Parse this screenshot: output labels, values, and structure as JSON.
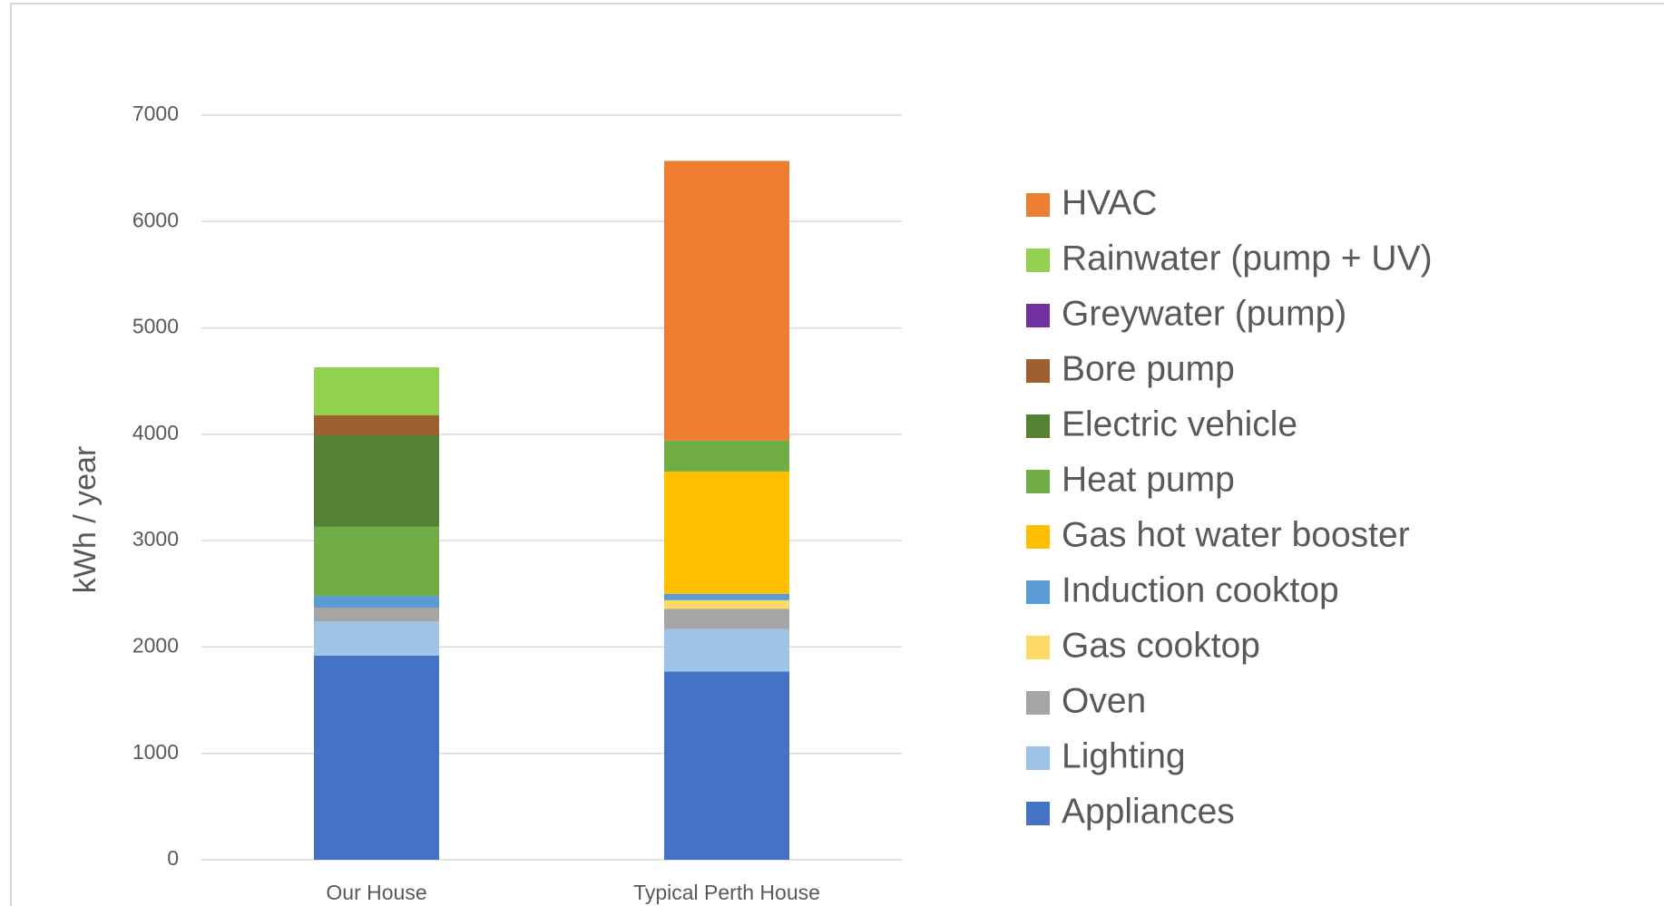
{
  "chart_data": {
    "type": "stacked_bar",
    "y_label": "kWh / year",
    "categories": [
      "Our House",
      "Typical Perth House"
    ],
    "ylim": [
      0,
      7000
    ],
    "yticks": [
      0,
      1000,
      2000,
      3000,
      4000,
      5000,
      6000,
      7000
    ],
    "grid": true,
    "series": [
      {
        "name": "Appliances",
        "color": "#4472c4",
        "values": [
          1920,
          1770
        ]
      },
      {
        "name": "Lighting",
        "color": "#9dc3e6",
        "values": [
          320,
          400
        ]
      },
      {
        "name": "Oven",
        "color": "#a5a5a5",
        "values": [
          130,
          190
        ]
      },
      {
        "name": "Gas cooktop",
        "color": "#ffd966",
        "values": [
          0,
          80
        ]
      },
      {
        "name": "Induction cooktop",
        "color": "#5b9bd5",
        "values": [
          110,
          60
        ]
      },
      {
        "name": "Gas hot water booster",
        "color": "#ffc000",
        "values": [
          0,
          1150
        ]
      },
      {
        "name": "Heat pump",
        "color": "#70ad47",
        "values": [
          650,
          290
        ]
      },
      {
        "name": "Electric vehicle",
        "color": "#548235",
        "values": [
          860,
          0
        ]
      },
      {
        "name": "Bore pump",
        "color": "#9e6030",
        "values": [
          190,
          0
        ]
      },
      {
        "name": "Greywater  (pump)",
        "color": "#7030a0",
        "values": [
          0,
          0
        ]
      },
      {
        "name": "Rainwater  (pump + UV)",
        "color": "#92d050",
        "values": [
          450,
          0
        ]
      },
      {
        "name": "HVAC",
        "color": "#ed7d31",
        "values": [
          0,
          2630
        ]
      }
    ]
  }
}
